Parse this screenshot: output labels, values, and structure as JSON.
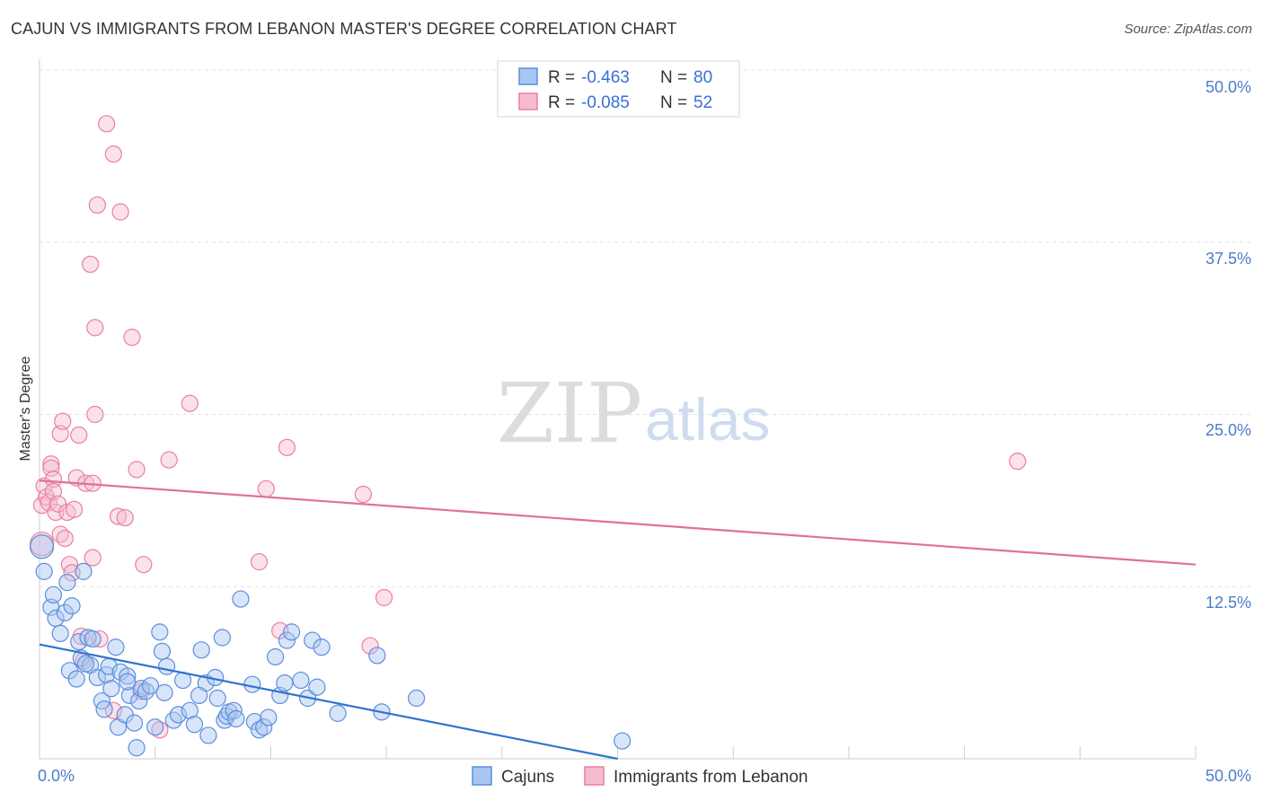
{
  "title": "CAJUN VS IMMIGRANTS FROM LEBANON MASTER'S DEGREE CORRELATION CHART",
  "source": "Source: ZipAtlas.com",
  "colors": {
    "blue": "#5b8ede",
    "blue_fill": "#a9c6f0",
    "blue_line": "#2e74d0",
    "pink": "#e97fa0",
    "pink_fill": "#f5bcd0",
    "pink_line": "#e0709a",
    "grid": "#e0e0e0",
    "tick_text": "#4a7cc9"
  },
  "legend": {
    "rows": [
      {
        "r_label": "R =",
        "r_value": "-0.463",
        "n_label": "N =",
        "n_value": "80"
      },
      {
        "r_label": "R =",
        "r_value": "-0.085",
        "n_label": "N =",
        "n_value": "52"
      }
    ]
  },
  "chart_data": {
    "type": "scatter",
    "title": "CAJUN VS IMMIGRANTS FROM LEBANON MASTER'S DEGREE CORRELATION CHART",
    "xlabel": "",
    "ylabel": "Master's Degree",
    "xlim": [
      0,
      50
    ],
    "ylim": [
      0,
      50
    ],
    "x_tick_labels": [
      "0.0%",
      "50.0%"
    ],
    "y_tick_labels": [
      "12.5%",
      "25.0%",
      "37.5%",
      "50.0%"
    ],
    "y_ticks": [
      12.5,
      25.0,
      37.5,
      50.0
    ],
    "watermark": [
      "ZIP",
      "atlas"
    ],
    "series": [
      {
        "name": "Cajuns",
        "trend": {
          "x": [
            0,
            25
          ],
          "y": [
            8.3,
            0
          ]
        },
        "points": [
          [
            0.1,
            15.4
          ],
          [
            0.2,
            13.6
          ],
          [
            0.5,
            11
          ],
          [
            0.6,
            11.9
          ],
          [
            0.7,
            10.2
          ],
          [
            0.9,
            9.1
          ],
          [
            1.1,
            10.6
          ],
          [
            1.2,
            12.8
          ],
          [
            1.4,
            11.1
          ],
          [
            1.3,
            6.4
          ],
          [
            1.6,
            5.8
          ],
          [
            1.7,
            8.5
          ],
          [
            1.9,
            13.6
          ],
          [
            1.8,
            7.3
          ],
          [
            2.1,
            8.8
          ],
          [
            2.3,
            8.7
          ],
          [
            2.2,
            6.8
          ],
          [
            2.5,
            5.9
          ],
          [
            2.7,
            4.2
          ],
          [
            2.8,
            3.6
          ],
          [
            2.9,
            6.1
          ],
          [
            3.0,
            6.7
          ],
          [
            3.1,
            5.1
          ],
          [
            3.3,
            8.1
          ],
          [
            3.4,
            2.3
          ],
          [
            3.5,
            6.3
          ],
          [
            3.7,
            3.2
          ],
          [
            3.8,
            6
          ],
          [
            3.9,
            4.6
          ],
          [
            4.1,
            2.6
          ],
          [
            4.2,
            0.8
          ],
          [
            4.3,
            4.2
          ],
          [
            4.4,
            5.1
          ],
          [
            4.6,
            4.9
          ],
          [
            4.8,
            5.3
          ],
          [
            5.0,
            2.3
          ],
          [
            5.2,
            9.2
          ],
          [
            5.3,
            7.8
          ],
          [
            5.4,
            4.8
          ],
          [
            5.5,
            6.7
          ],
          [
            5.8,
            2.8
          ],
          [
            6.0,
            3.2
          ],
          [
            6.2,
            5.7
          ],
          [
            6.5,
            3.5
          ],
          [
            6.7,
            2.5
          ],
          [
            7.0,
            7.9
          ],
          [
            7.2,
            5.5
          ],
          [
            7.3,
            1.7
          ],
          [
            7.6,
            5.9
          ],
          [
            7.7,
            4.4
          ],
          [
            7.9,
            8.8
          ],
          [
            8.0,
            2.8
          ],
          [
            8.1,
            3.1
          ],
          [
            8.2,
            3.4
          ],
          [
            8.4,
            3.5
          ],
          [
            8.5,
            2.9
          ],
          [
            8.7,
            11.6
          ],
          [
            9.2,
            5.4
          ],
          [
            9.3,
            2.7
          ],
          [
            9.5,
            2.1
          ],
          [
            9.7,
            2.3
          ],
          [
            10.2,
            7.4
          ],
          [
            10.4,
            4.6
          ],
          [
            10.6,
            5.5
          ],
          [
            10.7,
            8.6
          ],
          [
            10.9,
            9.2
          ],
          [
            11.3,
            5.7
          ],
          [
            11.6,
            4.4
          ],
          [
            11.8,
            8.6
          ],
          [
            12,
            5.2
          ],
          [
            12.2,
            8.1
          ],
          [
            12.9,
            3.3
          ],
          [
            14.6,
            7.5
          ],
          [
            14.8,
            3.4
          ],
          [
            16.3,
            4.4
          ],
          [
            25.2,
            1.3
          ],
          [
            3.8,
            5.6
          ],
          [
            6.9,
            4.6
          ],
          [
            2.0,
            6.9
          ],
          [
            9.9,
            3.0
          ]
        ]
      },
      {
        "name": "Immigrants from Lebanon",
        "trend": {
          "x": [
            0,
            50
          ],
          "y": [
            20.2,
            14.1
          ]
        },
        "points": [
          [
            0.1,
            15.6
          ],
          [
            0.1,
            18.4
          ],
          [
            0.2,
            19.8
          ],
          [
            0.3,
            19
          ],
          [
            0.4,
            18.6
          ],
          [
            0.5,
            21.4
          ],
          [
            0.5,
            21.1
          ],
          [
            0.6,
            20.3
          ],
          [
            0.6,
            19.4
          ],
          [
            0.7,
            17.9
          ],
          [
            0.8,
            18.5
          ],
          [
            0.9,
            16.3
          ],
          [
            0.9,
            23.6
          ],
          [
            1.0,
            24.5
          ],
          [
            1.1,
            16
          ],
          [
            1.2,
            17.9
          ],
          [
            1.3,
            14.1
          ],
          [
            1.4,
            13.5
          ],
          [
            1.6,
            20.4
          ],
          [
            1.7,
            23.5
          ],
          [
            1.8,
            8.9
          ],
          [
            1.9,
            7.1
          ],
          [
            2.0,
            20
          ],
          [
            2.2,
            35.9
          ],
          [
            2.3,
            14.6
          ],
          [
            2.3,
            20
          ],
          [
            2.4,
            31.3
          ],
          [
            2.4,
            25
          ],
          [
            2.5,
            40.2
          ],
          [
            2.6,
            8.7
          ],
          [
            2.9,
            46.1
          ],
          [
            3.2,
            43.9
          ],
          [
            3.2,
            3.5
          ],
          [
            3.4,
            17.6
          ],
          [
            3.5,
            39.7
          ],
          [
            3.7,
            17.5
          ],
          [
            4.0,
            30.6
          ],
          [
            4.2,
            21
          ],
          [
            4.4,
            4.9
          ],
          [
            4.5,
            14.1
          ],
          [
            5.2,
            2.1
          ],
          [
            5.6,
            21.7
          ],
          [
            6.5,
            25.8
          ],
          [
            9.5,
            14.3
          ],
          [
            9.8,
            19.6
          ],
          [
            10.4,
            9.3
          ],
          [
            10.7,
            22.6
          ],
          [
            14.0,
            19.2
          ],
          [
            14.3,
            8.2
          ],
          [
            14.9,
            11.7
          ],
          [
            42.3,
            21.6
          ],
          [
            1.5,
            18.1
          ]
        ]
      }
    ]
  },
  "bottom_legend": {
    "items": [
      "Cajuns",
      "Immigrants from Lebanon"
    ]
  }
}
